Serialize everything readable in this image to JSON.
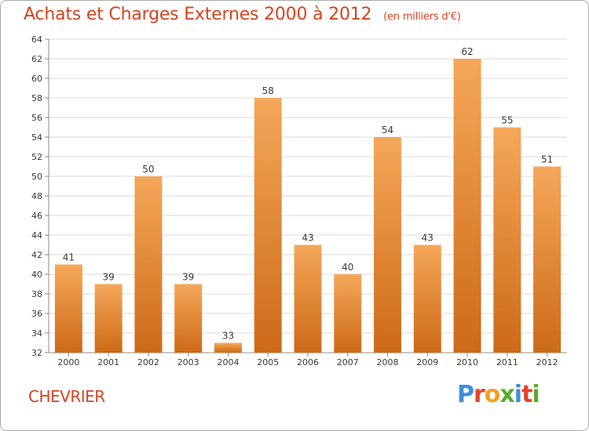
{
  "header": {
    "title": "Achats et Charges Externes 2000 à 2012",
    "unit": "(en milliers d'€)"
  },
  "footer": {
    "commune": "CHEVRIER",
    "brand": "Proxiti",
    "brand_colors": [
      "#3d8fd6",
      "#e3432b",
      "#f0a020",
      "#5aab2f",
      "#3d8fd6",
      "#e3432b",
      "#5aab2f"
    ]
  },
  "chart_data": {
    "type": "bar",
    "title": "Achats et Charges Externes 2000 à 2012",
    "subtitle": "(en milliers d'€)",
    "xlabel": "",
    "ylabel": "",
    "categories": [
      "2000",
      "2001",
      "2002",
      "2003",
      "2004",
      "2005",
      "2006",
      "2007",
      "2008",
      "2009",
      "2010",
      "2011",
      "2012"
    ],
    "values": [
      41,
      39,
      50,
      39,
      33,
      58,
      43,
      40,
      54,
      43,
      62,
      55,
      51
    ],
    "data_labels": [
      "41",
      "39",
      "50",
      "39",
      "33",
      "58",
      "43",
      "40",
      "54",
      "43",
      "62",
      "55",
      "51"
    ],
    "ylim": [
      32,
      64
    ],
    "yticks": [
      32,
      34,
      36,
      38,
      40,
      42,
      44,
      46,
      48,
      50,
      52,
      54,
      56,
      58,
      60,
      62,
      64
    ],
    "ytick_labels": [
      "32",
      "34",
      "36",
      "38",
      "40",
      "42",
      "44",
      "46",
      "48",
      "50",
      "52",
      "54",
      "56",
      "58",
      "60",
      "62",
      "64"
    ],
    "grid": true,
    "legend": "none",
    "bar_color_top": "#f5a75a",
    "bar_color_bottom": "#cc6a17",
    "grid_color": "#d8d8d8"
  }
}
